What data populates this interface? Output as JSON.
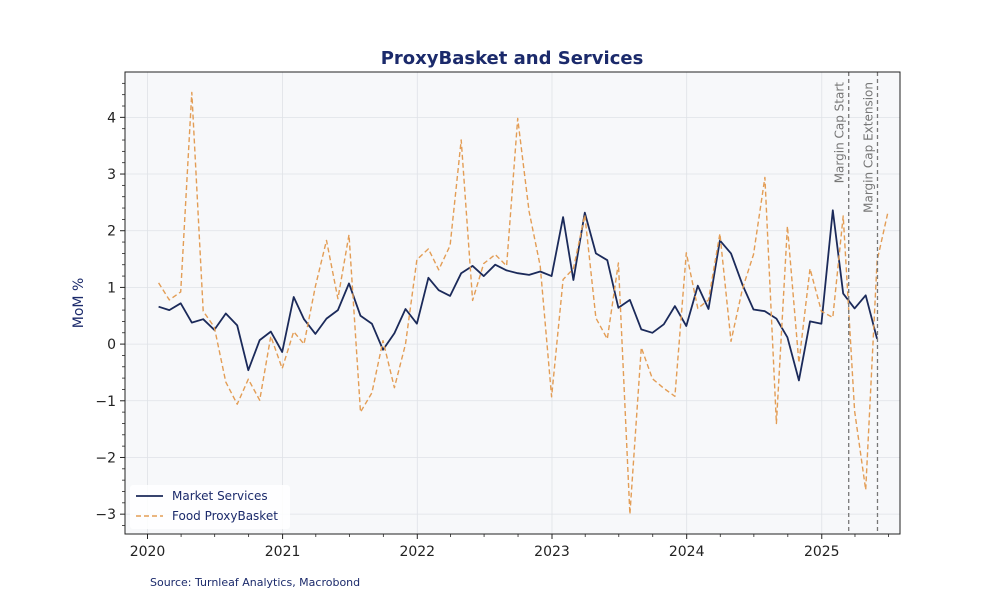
{
  "chart_data": {
    "type": "line",
    "title": "ProxyBasket and Services",
    "xlabel": "",
    "ylabel": "MoM %",
    "xlim": [
      "2019-11-01",
      "2025-08-01"
    ],
    "ylim": [
      -3.35,
      4.8
    ],
    "y_ticks": [
      -3,
      -2,
      -1,
      0,
      1,
      2,
      3,
      4
    ],
    "y_tick_labels": [
      "−3",
      "−2",
      "−1",
      "0",
      "1",
      "2",
      "3",
      "4"
    ],
    "x_ticks": [
      "2020-01-01",
      "2021-01-01",
      "2022-01-01",
      "2023-01-01",
      "2024-01-01",
      "2025-01-01"
    ],
    "x_tick_labels": [
      "2020",
      "2021",
      "2022",
      "2023",
      "2024",
      "2025"
    ],
    "grid": true,
    "legend_position": "bottom-left",
    "colors": {
      "plot_background": "#f7f8fa",
      "title": "#1b2a6b",
      "vlines": "#777777"
    },
    "series": [
      {
        "name": "Market Services",
        "color": "#1b2a5a",
        "style": "solid",
        "x": [
          "2020-01-31",
          "2020-02-29",
          "2020-03-31",
          "2020-04-30",
          "2020-05-31",
          "2020-06-30",
          "2020-07-31",
          "2020-08-31",
          "2020-09-30",
          "2020-10-31",
          "2020-11-30",
          "2020-12-31",
          "2021-01-31",
          "2021-02-28",
          "2021-03-31",
          "2021-04-30",
          "2021-05-31",
          "2021-06-30",
          "2021-07-31",
          "2021-08-31",
          "2021-09-30",
          "2021-10-31",
          "2021-11-30",
          "2021-12-31",
          "2022-01-31",
          "2022-02-28",
          "2022-03-31",
          "2022-04-30",
          "2022-05-31",
          "2022-06-30",
          "2022-07-31",
          "2022-08-31",
          "2022-09-30",
          "2022-10-31",
          "2022-11-30",
          "2022-12-31",
          "2023-01-31",
          "2023-02-28",
          "2023-03-31",
          "2023-04-30",
          "2023-05-31",
          "2023-06-30",
          "2023-07-31",
          "2023-08-31",
          "2023-09-30",
          "2023-10-31",
          "2023-11-30",
          "2023-12-31",
          "2024-01-31",
          "2024-02-29",
          "2024-03-31",
          "2024-04-30",
          "2024-05-31",
          "2024-06-30",
          "2024-07-31",
          "2024-08-31",
          "2024-09-30",
          "2024-10-31",
          "2024-11-30",
          "2024-12-31",
          "2025-01-31",
          "2025-02-28",
          "2025-03-31",
          "2025-04-30",
          "2025-05-31"
        ],
        "values": [
          0.66,
          0.6,
          0.72,
          0.38,
          0.44,
          0.25,
          0.54,
          0.33,
          -0.46,
          0.07,
          0.22,
          -0.14,
          0.83,
          0.44,
          0.18,
          0.45,
          0.6,
          1.07,
          0.5,
          0.36,
          -0.1,
          0.19,
          0.62,
          0.36,
          1.17,
          0.95,
          0.85,
          1.25,
          1.38,
          1.2,
          1.4,
          1.3,
          1.25,
          1.22,
          1.28,
          1.2,
          2.24,
          1.13,
          2.32,
          1.6,
          1.48,
          0.64,
          0.78,
          0.26,
          0.2,
          0.35,
          0.67,
          0.32,
          1.03,
          0.62,
          1.83,
          1.6,
          1.05,
          0.61,
          0.58,
          0.45,
          0.12,
          -0.64,
          0.4,
          0.36,
          2.36,
          0.89,
          0.63,
          0.86,
          0.09
        ]
      },
      {
        "name": "Food ProxyBasket",
        "color": "#e39d55",
        "style": "dashed",
        "x": [
          "2020-01-31",
          "2020-02-29",
          "2020-03-31",
          "2020-04-30",
          "2020-05-31",
          "2020-06-30",
          "2020-07-31",
          "2020-08-31",
          "2020-09-30",
          "2020-10-31",
          "2020-11-30",
          "2020-12-31",
          "2021-01-31",
          "2021-02-28",
          "2021-03-31",
          "2021-04-30",
          "2021-05-31",
          "2021-06-30",
          "2021-07-31",
          "2021-08-31",
          "2021-09-30",
          "2021-10-31",
          "2021-11-30",
          "2021-12-31",
          "2022-01-31",
          "2022-02-28",
          "2022-03-31",
          "2022-04-30",
          "2022-05-31",
          "2022-06-30",
          "2022-07-31",
          "2022-08-31",
          "2022-09-30",
          "2022-10-31",
          "2022-11-30",
          "2022-12-31",
          "2023-01-31",
          "2023-02-28",
          "2023-03-31",
          "2023-04-30",
          "2023-05-31",
          "2023-06-30",
          "2023-07-31",
          "2023-08-31",
          "2023-09-30",
          "2023-10-31",
          "2023-11-30",
          "2023-12-31",
          "2024-01-31",
          "2024-02-29",
          "2024-03-31",
          "2024-04-30",
          "2024-05-31",
          "2024-06-30",
          "2024-07-31",
          "2024-08-31",
          "2024-09-30",
          "2024-10-31",
          "2024-11-30",
          "2024-12-31",
          "2025-01-31",
          "2025-02-28",
          "2025-03-31",
          "2025-04-30",
          "2025-05-31",
          "2025-06-30"
        ],
        "values": [
          1.08,
          0.78,
          0.92,
          4.44,
          0.58,
          0.3,
          -0.67,
          -1.06,
          -0.62,
          -0.99,
          0.14,
          -0.43,
          0.22,
          0.0,
          1.02,
          1.83,
          0.8,
          1.93,
          -1.2,
          -0.86,
          0.06,
          -0.77,
          0.0,
          1.49,
          1.68,
          1.31,
          1.74,
          3.6,
          0.77,
          1.42,
          1.58,
          1.38,
          3.98,
          2.34,
          1.38,
          -0.93,
          1.14,
          1.33,
          2.28,
          0.46,
          0.09,
          1.43,
          -3.0,
          -0.06,
          -0.61,
          -0.78,
          -0.92,
          1.61,
          0.63,
          0.78,
          1.95,
          0.05,
          0.97,
          1.58,
          2.94,
          -1.4,
          2.08,
          -0.33,
          1.33,
          0.58,
          0.47,
          2.26,
          -1.18,
          -2.57,
          1.47,
          2.35
        ]
      }
    ],
    "vlines": [
      {
        "x": "2025-03-15",
        "label": "Margin Cap Start"
      },
      {
        "x": "2025-06-01",
        "label": "Margin Cap Extension"
      }
    ],
    "source": "Source: Turnleaf Analytics, Macrobond"
  }
}
